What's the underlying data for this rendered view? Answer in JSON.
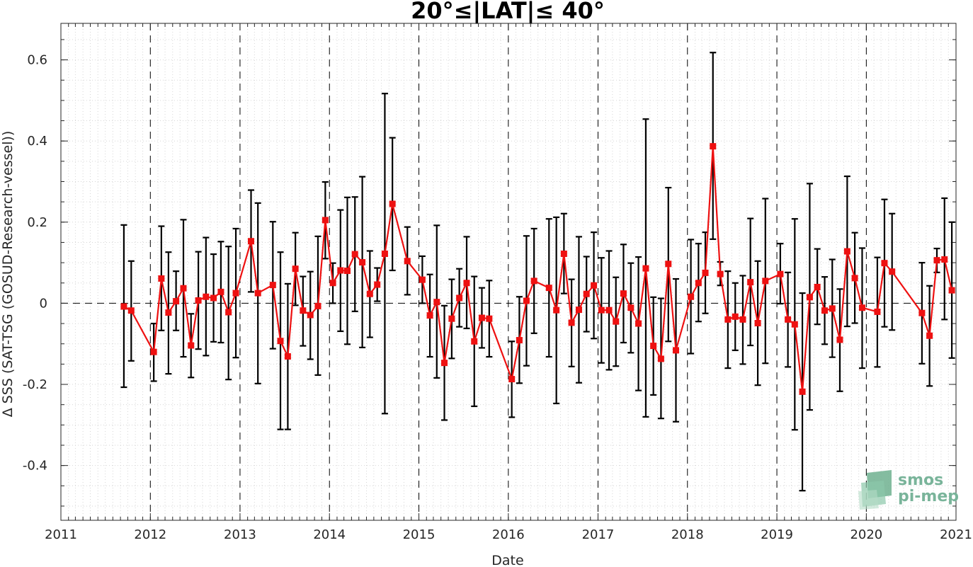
{
  "chart_data": {
    "type": "line",
    "title": "20°≤|LAT|≤ 40°",
    "xlabel": "Date",
    "ylabel": "Δ SSS (SAT-TSG (GOSUD-Research-vessel))",
    "xlim": [
      "2011-01-01",
      "2021-01-01"
    ],
    "ylim": [
      -0.535,
      0.69
    ],
    "x_ticks": [
      "2011",
      "2012",
      "2013",
      "2014",
      "2015",
      "2016",
      "2017",
      "2018",
      "2019",
      "2020",
      "2021"
    ],
    "y_ticks": [
      {
        "value": 0.6,
        "label": "0.6"
      },
      {
        "value": 0.4,
        "label": "0.4"
      },
      {
        "value": 0.2,
        "label": "0.2"
      },
      {
        "value": 0,
        "label": "0"
      },
      {
        "value": -0.2,
        "label": "-0.2"
      },
      {
        "value": -0.4,
        "label": "-0.4"
      }
    ],
    "grid": "dotted minor grid; dashed vertical lines at each year; dashed horizontal reference line at 0",
    "series": [
      {
        "style": "red line with square markers and black error bars",
        "color": "#ee1111",
        "errorbar_color": "#000000",
        "points": [
          {
            "x": "2011-09-15",
            "y": -0.008,
            "lo": -0.207,
            "hi": 0.193
          },
          {
            "x": "2011-10-15",
            "y": -0.018,
            "lo": -0.142,
            "hi": 0.104
          },
          {
            "x": "2012-01-15",
            "y": -0.12,
            "lo": -0.192,
            "hi": -0.05
          },
          {
            "x": "2012-02-15",
            "y": 0.061,
            "lo": -0.067,
            "hi": 0.19
          },
          {
            "x": "2012-03-15",
            "y": -0.023,
            "lo": -0.174,
            "hi": 0.126
          },
          {
            "x": "2012-04-15",
            "y": 0.005,
            "lo": -0.067,
            "hi": 0.079
          },
          {
            "x": "2012-05-15",
            "y": 0.037,
            "lo": -0.132,
            "hi": 0.206
          },
          {
            "x": "2012-06-15",
            "y": -0.104,
            "lo": -0.183,
            "hi": -0.026
          },
          {
            "x": "2012-07-15",
            "y": 0.007,
            "lo": -0.113,
            "hi": 0.127
          },
          {
            "x": "2012-08-15",
            "y": 0.016,
            "lo": -0.129,
            "hi": 0.162
          },
          {
            "x": "2012-09-15",
            "y": 0.013,
            "lo": -0.095,
            "hi": 0.121
          },
          {
            "x": "2012-10-15",
            "y": 0.028,
            "lo": -0.097,
            "hi": 0.152
          },
          {
            "x": "2012-11-15",
            "y": -0.022,
            "lo": -0.188,
            "hi": 0.14
          },
          {
            "x": "2012-12-15",
            "y": 0.025,
            "lo": -0.134,
            "hi": 0.184
          },
          {
            "x": "2013-02-15",
            "y": 0.153,
            "lo": 0.028,
            "hi": 0.279
          },
          {
            "x": "2013-03-15",
            "y": 0.025,
            "lo": -0.198,
            "hi": 0.247
          },
          {
            "x": "2013-05-15",
            "y": 0.045,
            "lo": -0.112,
            "hi": 0.201
          },
          {
            "x": "2013-06-15",
            "y": -0.093,
            "lo": -0.311,
            "hi": 0.126
          },
          {
            "x": "2013-07-15",
            "y": -0.131,
            "lo": -0.311,
            "hi": 0.048
          },
          {
            "x": "2013-08-15",
            "y": 0.085,
            "lo": -0.005,
            "hi": 0.174
          },
          {
            "x": "2013-09-15",
            "y": -0.018,
            "lo": -0.105,
            "hi": 0.066
          },
          {
            "x": "2013-10-15",
            "y": -0.029,
            "lo": -0.138,
            "hi": 0.078
          },
          {
            "x": "2013-11-15",
            "y": -0.007,
            "lo": -0.177,
            "hi": 0.165
          },
          {
            "x": "2013-12-15",
            "y": 0.205,
            "lo": 0.11,
            "hi": 0.299
          },
          {
            "x": "2014-01-15",
            "y": 0.05,
            "lo": 0.0,
            "hi": 0.099
          },
          {
            "x": "2014-02-15",
            "y": 0.081,
            "lo": -0.069,
            "hi": 0.23
          },
          {
            "x": "2014-03-15",
            "y": 0.08,
            "lo": -0.101,
            "hi": 0.261
          },
          {
            "x": "2014-04-15",
            "y": 0.121,
            "lo": -0.02,
            "hi": 0.262
          },
          {
            "x": "2014-05-15",
            "y": 0.101,
            "lo": -0.109,
            "hi": 0.312
          },
          {
            "x": "2014-06-15",
            "y": 0.023,
            "lo": -0.084,
            "hi": 0.129
          },
          {
            "x": "2014-07-15",
            "y": 0.046,
            "lo": 0.005,
            "hi": 0.087
          },
          {
            "x": "2014-08-15",
            "y": 0.122,
            "lo": -0.272,
            "hi": 0.517
          },
          {
            "x": "2014-09-15",
            "y": 0.245,
            "lo": 0.081,
            "hi": 0.408
          },
          {
            "x": "2014-11-15",
            "y": 0.104,
            "lo": 0.021,
            "hi": 0.188
          },
          {
            "x": "2015-01-15",
            "y": 0.058,
            "lo": 0.0,
            "hi": 0.116
          },
          {
            "x": "2015-02-15",
            "y": -0.03,
            "lo": -0.132,
            "hi": 0.071
          },
          {
            "x": "2015-03-15",
            "y": 0.003,
            "lo": -0.184,
            "hi": 0.192
          },
          {
            "x": "2015-04-15",
            "y": -0.147,
            "lo": -0.288,
            "hi": -0.006
          },
          {
            "x": "2015-05-15",
            "y": -0.038,
            "lo": -0.136,
            "hi": 0.059
          },
          {
            "x": "2015-06-15",
            "y": 0.013,
            "lo": -0.058,
            "hi": 0.085
          },
          {
            "x": "2015-07-15",
            "y": 0.05,
            "lo": -0.062,
            "hi": 0.164
          },
          {
            "x": "2015-08-15",
            "y": -0.094,
            "lo": -0.254,
            "hi": 0.066
          },
          {
            "x": "2015-09-15",
            "y": -0.036,
            "lo": -0.11,
            "hi": 0.038
          },
          {
            "x": "2015-10-15",
            "y": -0.038,
            "lo": -0.132,
            "hi": 0.056
          },
          {
            "x": "2016-01-15",
            "y": -0.187,
            "lo": -0.281,
            "hi": -0.094
          },
          {
            "x": "2016-02-15",
            "y": -0.091,
            "lo": -0.197,
            "hi": 0.016
          },
          {
            "x": "2016-03-15",
            "y": 0.006,
            "lo": -0.154,
            "hi": 0.166
          },
          {
            "x": "2016-04-15",
            "y": 0.055,
            "lo": -0.074,
            "hi": 0.184
          },
          {
            "x": "2016-06-15",
            "y": 0.038,
            "lo": -0.132,
            "hi": 0.208
          },
          {
            "x": "2016-07-15",
            "y": -0.017,
            "lo": -0.247,
            "hi": 0.212
          },
          {
            "x": "2016-08-15",
            "y": 0.122,
            "lo": 0.024,
            "hi": 0.221
          },
          {
            "x": "2016-09-15",
            "y": -0.048,
            "lo": -0.156,
            "hi": 0.059
          },
          {
            "x": "2016-10-15",
            "y": -0.016,
            "lo": -0.196,
            "hi": 0.164
          },
          {
            "x": "2016-11-15",
            "y": 0.023,
            "lo": -0.07,
            "hi": 0.115
          },
          {
            "x": "2016-12-15",
            "y": 0.044,
            "lo": -0.087,
            "hi": 0.175
          },
          {
            "x": "2017-01-15",
            "y": -0.017,
            "lo": -0.147,
            "hi": 0.112
          },
          {
            "x": "2017-02-15",
            "y": -0.017,
            "lo": -0.164,
            "hi": 0.129
          },
          {
            "x": "2017-03-15",
            "y": -0.045,
            "lo": -0.155,
            "hi": 0.064
          },
          {
            "x": "2017-04-15",
            "y": 0.024,
            "lo": -0.097,
            "hi": 0.145
          },
          {
            "x": "2017-05-15",
            "y": -0.011,
            "lo": -0.122,
            "hi": 0.099
          },
          {
            "x": "2017-06-15",
            "y": -0.05,
            "lo": -0.215,
            "hi": 0.114
          },
          {
            "x": "2017-07-15",
            "y": 0.086,
            "lo": -0.28,
            "hi": 0.454
          },
          {
            "x": "2017-08-15",
            "y": -0.105,
            "lo": -0.226,
            "hi": 0.015
          },
          {
            "x": "2017-09-15",
            "y": -0.137,
            "lo": -0.284,
            "hi": 0.012
          },
          {
            "x": "2017-10-15",
            "y": 0.097,
            "lo": -0.094,
            "hi": 0.285
          },
          {
            "x": "2017-11-15",
            "y": -0.116,
            "lo": -0.292,
            "hi": 0.06
          },
          {
            "x": "2018-01-15",
            "y": 0.016,
            "lo": -0.124,
            "hi": 0.157
          },
          {
            "x": "2018-02-15",
            "y": 0.05,
            "lo": -0.045,
            "hi": 0.147
          },
          {
            "x": "2018-03-15",
            "y": 0.075,
            "lo": -0.025,
            "hi": 0.175
          },
          {
            "x": "2018-04-15",
            "y": 0.387,
            "lo": 0.158,
            "hi": 0.618
          },
          {
            "x": "2018-05-15",
            "y": 0.072,
            "lo": 0.044,
            "hi": 0.102
          },
          {
            "x": "2018-06-15",
            "y": -0.04,
            "lo": -0.16,
            "hi": 0.079
          },
          {
            "x": "2018-07-15",
            "y": -0.033,
            "lo": -0.116,
            "hi": 0.05
          },
          {
            "x": "2018-08-15",
            "y": -0.04,
            "lo": -0.15,
            "hi": 0.068
          },
          {
            "x": "2018-09-15",
            "y": 0.052,
            "lo": -0.104,
            "hi": 0.209
          },
          {
            "x": "2018-10-15",
            "y": -0.049,
            "lo": -0.202,
            "hi": 0.104
          },
          {
            "x": "2018-11-15",
            "y": 0.055,
            "lo": -0.148,
            "hi": 0.258
          },
          {
            "x": "2019-01-15",
            "y": 0.072,
            "lo": -0.001,
            "hi": 0.147
          },
          {
            "x": "2019-02-15",
            "y": -0.04,
            "lo": -0.157,
            "hi": 0.076
          },
          {
            "x": "2019-03-15",
            "y": -0.052,
            "lo": -0.312,
            "hi": 0.208
          },
          {
            "x": "2019-04-15",
            "y": -0.218,
            "lo": -0.462,
            "hi": 0.025
          },
          {
            "x": "2019-05-15",
            "y": 0.015,
            "lo": -0.263,
            "hi": 0.295
          },
          {
            "x": "2019-06-15",
            "y": 0.04,
            "lo": -0.052,
            "hi": 0.134
          },
          {
            "x": "2019-07-15",
            "y": -0.018,
            "lo": -0.101,
            "hi": 0.065
          },
          {
            "x": "2019-08-15",
            "y": -0.013,
            "lo": -0.133,
            "hi": 0.108
          },
          {
            "x": "2019-09-15",
            "y": -0.09,
            "lo": -0.217,
            "hi": 0.035
          },
          {
            "x": "2019-10-15",
            "y": 0.128,
            "lo": -0.057,
            "hi": 0.313
          },
          {
            "x": "2019-11-15",
            "y": 0.062,
            "lo": -0.049,
            "hi": 0.174
          },
          {
            "x": "2019-12-15",
            "y": -0.011,
            "lo": -0.16,
            "hi": 0.136
          },
          {
            "x": "2020-02-15",
            "y": -0.021,
            "lo": -0.157,
            "hi": 0.113
          },
          {
            "x": "2020-03-15",
            "y": 0.099,
            "lo": -0.058,
            "hi": 0.256
          },
          {
            "x": "2020-04-15",
            "y": 0.078,
            "lo": -0.066,
            "hi": 0.221
          },
          {
            "x": "2020-08-15",
            "y": -0.024,
            "lo": -0.149,
            "hi": 0.1
          },
          {
            "x": "2020-09-15",
            "y": -0.08,
            "lo": -0.204,
            "hi": 0.043
          },
          {
            "x": "2020-10-15",
            "y": 0.106,
            "lo": 0.076,
            "hi": 0.135
          },
          {
            "x": "2020-11-15",
            "y": 0.108,
            "lo": -0.04,
            "hi": 0.259
          },
          {
            "x": "2020-12-15",
            "y": 0.032,
            "lo": -0.135,
            "hi": 0.2
          }
        ]
      }
    ]
  },
  "logo": {
    "line1": "smos",
    "line2": "pi-mep",
    "color": "#79b49a",
    "icon": "smos-pimep-logo-icon"
  }
}
